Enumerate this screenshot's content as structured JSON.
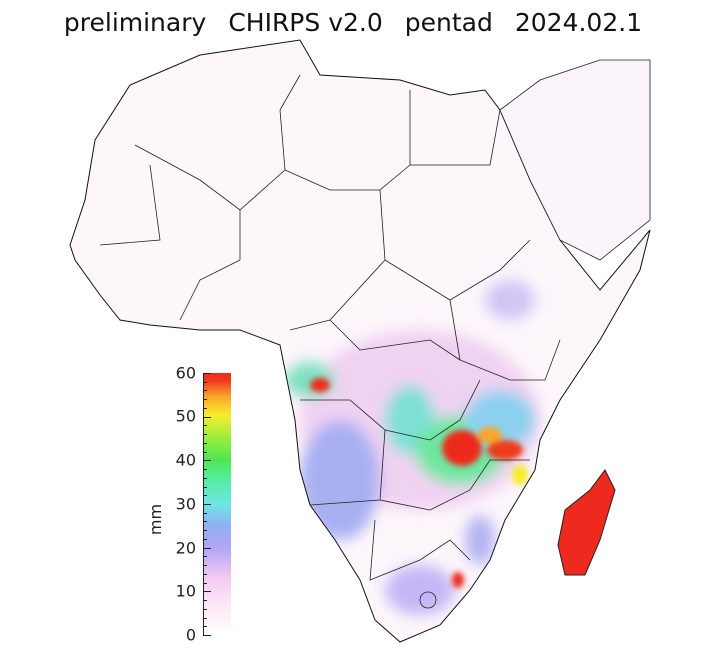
{
  "title": {
    "status": "preliminary",
    "product": "CHIRPS v2.0",
    "period_type": "pentad",
    "date": "2024.02.1"
  },
  "colorbar": {
    "unit": "mm",
    "min": 0,
    "max": 60,
    "tick_labels": [
      "0",
      "10",
      "20",
      "30",
      "40",
      "50",
      "60"
    ],
    "colors": [
      "#ffffff",
      "#fde6f6",
      "#b3a6f6",
      "#6ee6e6",
      "#4fe64f",
      "#f5ee2c",
      "#f9a62a",
      "#ee2a1e"
    ]
  }
}
